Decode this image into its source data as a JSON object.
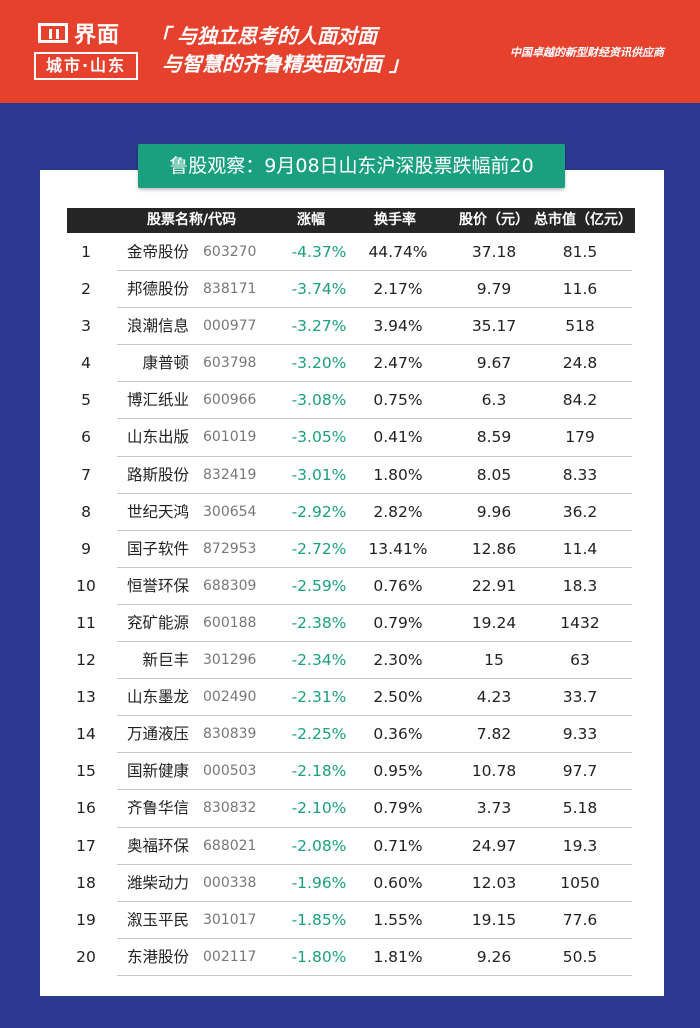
{
  "header": {
    "logo_name": "界面",
    "logo_city": "城市·山东",
    "slogan_line1": "「 与独立思考的人面对面",
    "slogan_line2": "与智慧的齐鲁精英面对面 」",
    "tagline": "中国卓越的新型财经资讯供应商"
  },
  "title": "鲁股观察：9月08日山东沪深股票跌幅前20",
  "columns": {
    "name_code": "股票名称/代码",
    "change": "涨幅",
    "turnover": "换手率",
    "price": "股价（元）",
    "cap": "总市值（亿元）"
  },
  "rows": [
    {
      "idx": "1",
      "name": "金帝股份",
      "code": "603270",
      "change": "-4.37%",
      "turnover": "44.74%",
      "price": "37.18",
      "cap": "81.5"
    },
    {
      "idx": "2",
      "name": "邦德股份",
      "code": "838171",
      "change": "-3.74%",
      "turnover": "2.17%",
      "price": "9.79",
      "cap": "11.6"
    },
    {
      "idx": "3",
      "name": "浪潮信息",
      "code": "000977",
      "change": "-3.27%",
      "turnover": "3.94%",
      "price": "35.17",
      "cap": "518"
    },
    {
      "idx": "4",
      "name": "康普顿",
      "code": "603798",
      "change": "-3.20%",
      "turnover": "2.47%",
      "price": "9.67",
      "cap": "24.8"
    },
    {
      "idx": "5",
      "name": "博汇纸业",
      "code": "600966",
      "change": "-3.08%",
      "turnover": "0.75%",
      "price": "6.3",
      "cap": "84.2"
    },
    {
      "idx": "6",
      "name": "山东出版",
      "code": "601019",
      "change": "-3.05%",
      "turnover": "0.41%",
      "price": "8.59",
      "cap": "179"
    },
    {
      "idx": "7",
      "name": "路斯股份",
      "code": "832419",
      "change": "-3.01%",
      "turnover": "1.80%",
      "price": "8.05",
      "cap": "8.33"
    },
    {
      "idx": "8",
      "name": "世纪天鸿",
      "code": "300654",
      "change": "-2.92%",
      "turnover": "2.82%",
      "price": "9.96",
      "cap": "36.2"
    },
    {
      "idx": "9",
      "name": "国子软件",
      "code": "872953",
      "change": "-2.72%",
      "turnover": "13.41%",
      "price": "12.86",
      "cap": "11.4"
    },
    {
      "idx": "10",
      "name": "恒誉环保",
      "code": "688309",
      "change": "-2.59%",
      "turnover": "0.76%",
      "price": "22.91",
      "cap": "18.3"
    },
    {
      "idx": "11",
      "name": "兖矿能源",
      "code": "600188",
      "change": "-2.38%",
      "turnover": "0.79%",
      "price": "19.24",
      "cap": "1432"
    },
    {
      "idx": "12",
      "name": "新巨丰",
      "code": "301296",
      "change": "-2.34%",
      "turnover": "2.30%",
      "price": "15",
      "cap": "63"
    },
    {
      "idx": "13",
      "name": "山东墨龙",
      "code": "002490",
      "change": "-2.31%",
      "turnover": "2.50%",
      "price": "4.23",
      "cap": "33.7"
    },
    {
      "idx": "14",
      "name": "万通液压",
      "code": "830839",
      "change": "-2.25%",
      "turnover": "0.36%",
      "price": "7.82",
      "cap": "9.33"
    },
    {
      "idx": "15",
      "name": "国新健康",
      "code": "000503",
      "change": "-2.18%",
      "turnover": "0.95%",
      "price": "10.78",
      "cap": "97.7"
    },
    {
      "idx": "16",
      "name": "齐鲁华信",
      "code": "830832",
      "change": "-2.10%",
      "turnover": "0.79%",
      "price": "3.73",
      "cap": "5.18"
    },
    {
      "idx": "17",
      "name": "奥福环保",
      "code": "688021",
      "change": "-2.08%",
      "turnover": "0.71%",
      "price": "24.97",
      "cap": "19.3"
    },
    {
      "idx": "18",
      "name": "潍柴动力",
      "code": "000338",
      "change": "-1.96%",
      "turnover": "0.60%",
      "price": "12.03",
      "cap": "1050"
    },
    {
      "idx": "19",
      "name": "溆玉平民",
      "code": "301017",
      "change": "-1.85%",
      "turnover": "1.55%",
      "price": "19.15",
      "cap": "77.6"
    },
    {
      "idx": "20",
      "name": "东港股份",
      "code": "002117",
      "change": "-1.80%",
      "turnover": "1.81%",
      "price": "9.26",
      "cap": "50.5"
    }
  ]
}
